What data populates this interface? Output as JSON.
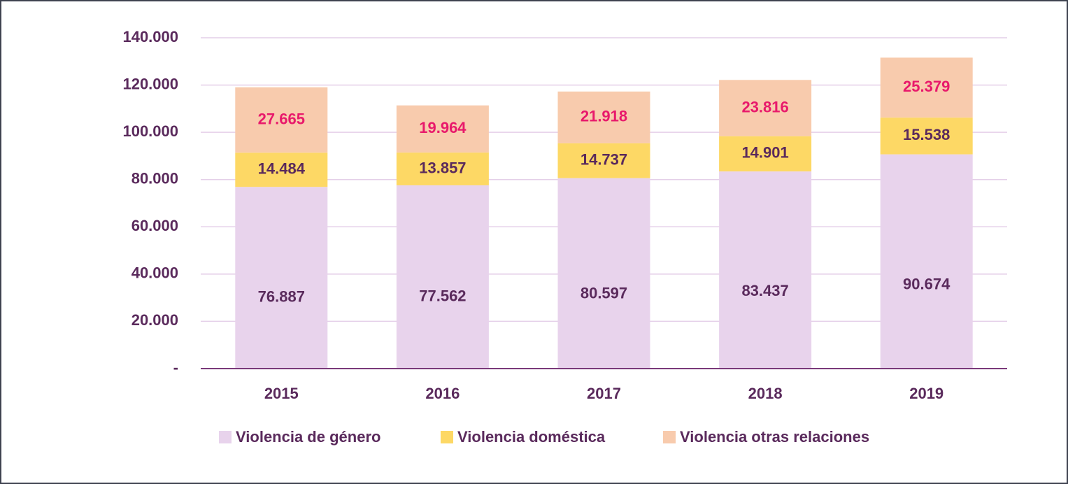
{
  "chart_data": {
    "type": "stacked_bar",
    "categories": [
      "2015",
      "2016",
      "2017",
      "2018",
      "2019"
    ],
    "series": [
      {
        "name": "Violencia de género",
        "color": "#e8d3ec",
        "label_color": "#5a2a5c",
        "values": [
          76887,
          77562,
          80597,
          83437,
          90674
        ],
        "value_labels": [
          "76.887",
          "77.562",
          "80.597",
          "83.437",
          "90.674"
        ]
      },
      {
        "name": "Violencia doméstica",
        "color": "#fdd865",
        "label_color": "#5a2a5c",
        "values": [
          14484,
          13857,
          14737,
          14901,
          15538
        ],
        "value_labels": [
          "14.484",
          "13.857",
          "14.737",
          "14.901",
          "15.538"
        ]
      },
      {
        "name": "Violencia otras relaciones",
        "color": "#f8cbad",
        "label_color": "#e8196b",
        "values": [
          27665,
          19964,
          21918,
          23816,
          25379
        ],
        "value_labels": [
          "27.665",
          "19.964",
          "21.918",
          "23.816",
          "25.379"
        ]
      }
    ],
    "ylim": [
      0,
      140000
    ],
    "yticks": [
      {
        "value": 0,
        "label": "-"
      },
      {
        "value": 20000,
        "label": "20.000"
      },
      {
        "value": 40000,
        "label": "40.000"
      },
      {
        "value": 60000,
        "label": "60.000"
      },
      {
        "value": 80000,
        "label": "80.000"
      },
      {
        "value": 100000,
        "label": "100.000"
      },
      {
        "value": 120000,
        "label": "120.000"
      },
      {
        "value": 140000,
        "label": "140.000"
      }
    ],
    "grid": true,
    "legend": "bottom"
  }
}
